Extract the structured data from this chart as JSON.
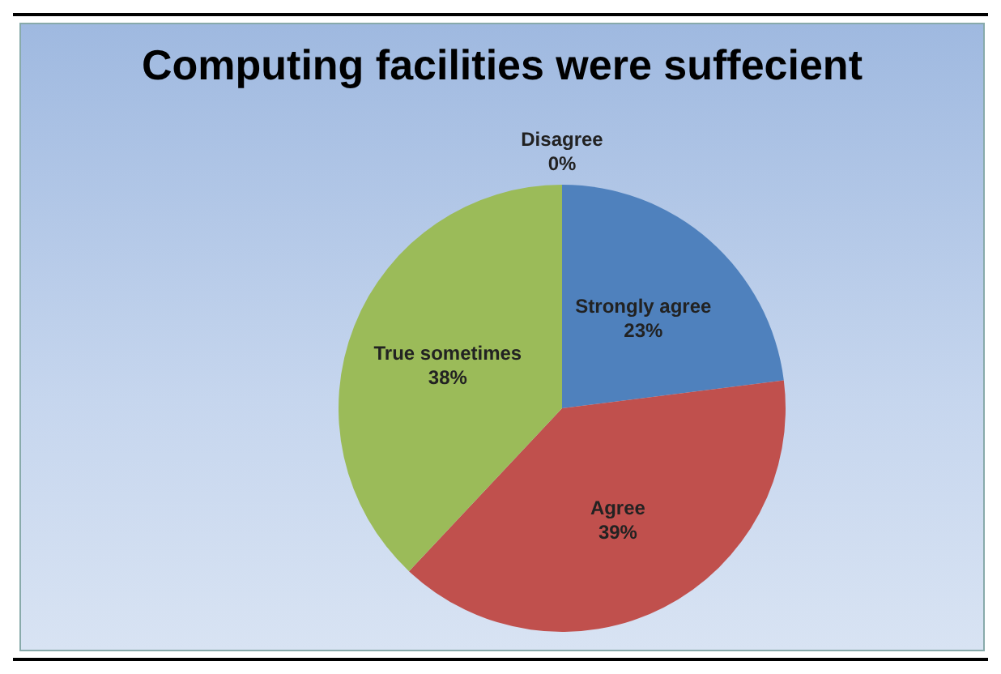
{
  "chart_data": {
    "type": "pie",
    "title": "Computing facilities were suffecient",
    "categories": [
      "Strongly agree",
      "Agree",
      "True sometimes",
      "Disagree"
    ],
    "values": [
      23,
      39,
      38,
      0
    ],
    "colors": [
      "#4f81bd",
      "#c0504d",
      "#9bbb59",
      "#8064a2"
    ],
    "value_labels": [
      "23%",
      "39%",
      "38%",
      "0%"
    ],
    "legend": false
  }
}
